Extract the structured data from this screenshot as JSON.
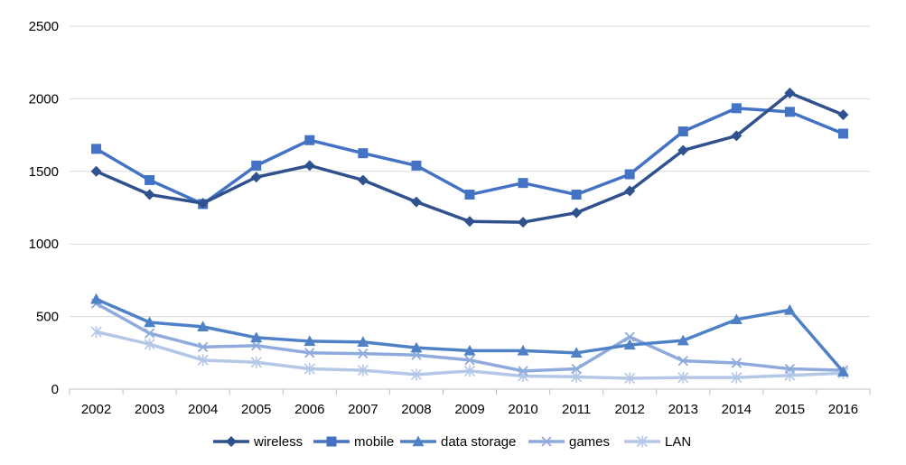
{
  "chart_data": {
    "type": "line",
    "categories": [
      "2002",
      "2003",
      "2004",
      "2005",
      "2006",
      "2007",
      "2008",
      "2009",
      "2010",
      "2011",
      "2012",
      "2013",
      "2014",
      "2015",
      "2016"
    ],
    "ylim": [
      0,
      2500
    ],
    "yticks": [
      "0",
      "500",
      "1000",
      "1500",
      "2000",
      "2500"
    ],
    "grid": true,
    "legend_position": "bottom",
    "series": [
      {
        "name": "wireless",
        "marker": "diamond",
        "color": "#2f528f",
        "values": [
          1500,
          1340,
          1280,
          1460,
          1540,
          1440,
          1290,
          1155,
          1150,
          1215,
          1365,
          1645,
          1745,
          2040,
          1890
        ]
      },
      {
        "name": "mobile",
        "marker": "square",
        "color": "#4472c4",
        "values": [
          1655,
          1440,
          1275,
          1540,
          1715,
          1625,
          1540,
          1340,
          1420,
          1340,
          1480,
          1775,
          1935,
          1910,
          1760
        ]
      },
      {
        "name": "data storage",
        "marker": "triangle",
        "color": "#4f81c7",
        "values": [
          620,
          460,
          430,
          355,
          330,
          325,
          285,
          265,
          265,
          250,
          305,
          335,
          480,
          545,
          120
        ]
      },
      {
        "name": "games",
        "marker": "x",
        "color": "#8faadc",
        "values": [
          590,
          385,
          290,
          300,
          250,
          245,
          235,
          200,
          125,
          140,
          360,
          195,
          180,
          140,
          130
        ]
      },
      {
        "name": "LAN",
        "marker": "star",
        "color": "#b4c7e7",
        "values": [
          395,
          310,
          200,
          185,
          140,
          130,
          100,
          125,
          90,
          85,
          75,
          80,
          80,
          95,
          110
        ]
      }
    ]
  }
}
